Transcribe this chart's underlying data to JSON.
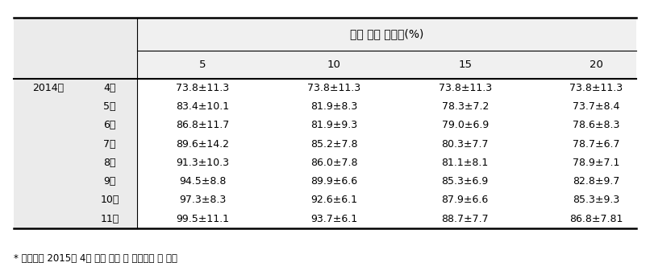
{
  "title": "일간 먹이 공급율(%)",
  "col_headers": [
    "5",
    "10",
    "15",
    "20"
  ],
  "row_headers_year": [
    "2014년",
    "",
    "",
    "",
    "",
    "",
    "",
    ""
  ],
  "row_headers_month": [
    "4월",
    "5월",
    "6월",
    "7월",
    "8월",
    "9월",
    "10월",
    "11월"
  ],
  "table_data": [
    [
      "73.8±11.3",
      "73.8±11.3",
      "73.8±11.3",
      "73.8±11.3"
    ],
    [
      "83.4±10.1",
      "81.9±8.3",
      "78.3±7.2",
      "73.7±8.4"
    ],
    [
      "86.8±11.7",
      "81.9±9.3",
      "79.0±6.9",
      "78.6±8.3"
    ],
    [
      "89.6±14.2",
      "85.2±7.8",
      "80.3±7.7",
      "78.7±6.7"
    ],
    [
      "91.3±10.3",
      "86.0±7.8",
      "81.1±8.1",
      "78.9±7.1"
    ],
    [
      "94.5±8.8",
      "89.9±6.6",
      "85.3±6.9",
      "82.8±9.7"
    ],
    [
      "97.3±8.3",
      "92.6±6.1",
      "87.9±6.6",
      "85.3±9.3"
    ],
    [
      "99.5±11.1",
      "93.7±6.1",
      "88.7±7.7",
      "86.8±7.81"
    ]
  ],
  "footnote": "* 생존율은 2015년 4월 실험 종료 시 전수조사 후 산출",
  "bg_color": "#ffffff",
  "text_color": "#000000",
  "header_bg": "#f0f0f0",
  "label_bg": "#ebebeb"
}
